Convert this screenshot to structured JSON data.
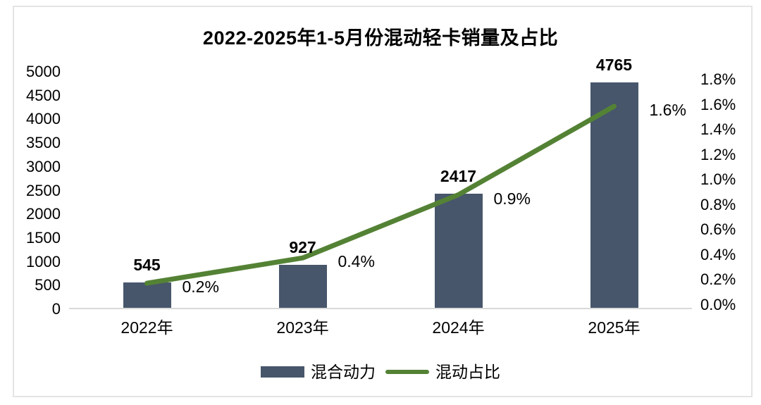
{
  "panel": {
    "background": "#ffffff",
    "border_color": "#e4e4e4"
  },
  "chart_data": {
    "type": "bar+line",
    "title": "2022-2025年1-5月份混动轻卡销量及占比",
    "categories": [
      "2022年",
      "2023年",
      "2024年",
      "2025年"
    ],
    "series": [
      {
        "name": "混合动力",
        "type": "bar",
        "axis": "left",
        "values": [
          545,
          927,
          2417,
          4765
        ],
        "data_labels": [
          "545",
          "927",
          "2417",
          "4765"
        ],
        "color": "#47566b"
      },
      {
        "name": "混动占比",
        "type": "line",
        "axis": "right",
        "values": [
          0.2,
          0.4,
          0.9,
          1.6
        ],
        "data_labels": [
          "0.2%",
          "0.4%",
          "0.9%",
          "1.6%"
        ],
        "color": "#548235"
      }
    ],
    "left_axis": {
      "min": 0,
      "max": 5000,
      "tick_labels": [
        "5000",
        "4500",
        "4000",
        "3500",
        "3000",
        "2500",
        "2000",
        "1500",
        "1000",
        "500",
        "0"
      ]
    },
    "right_axis": {
      "min": 0,
      "max": 1.8,
      "tick_labels": [
        "1.8%",
        "1.6%",
        "1.4%",
        "1.2%",
        "1.0%",
        "0.8%",
        "0.6%",
        "0.4%",
        "0.2%",
        "0.0%"
      ]
    },
    "grid": false,
    "legend_position": "bottom",
    "axis_line_color": "#d9d9d9",
    "text_color": "#000000"
  }
}
